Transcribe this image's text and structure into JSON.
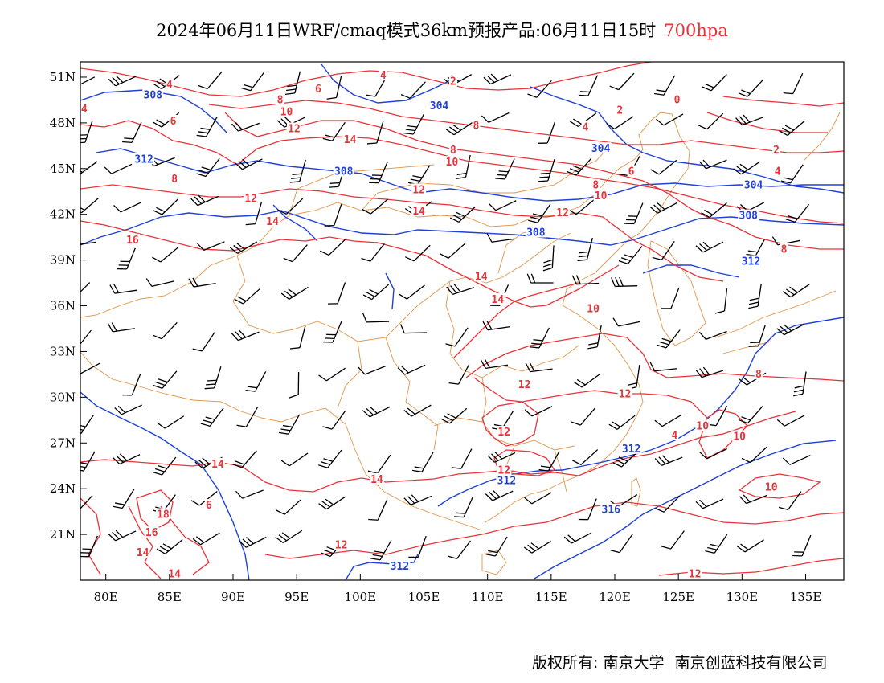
{
  "title": {
    "main": "2024年06月11日WRF/cmaq模式36km预报产品:06月11日15时",
    "level": "700hpa"
  },
  "colors": {
    "temperature_isotherm": "#e8333a",
    "geopotential_height": "#2040d8",
    "boundary": "#e0954a",
    "wind_barb": "#000000"
  },
  "icons": {
    "wind": "wind-barb-icon"
  },
  "axes": {
    "lon_labels": [
      "80E",
      "85E",
      "90E",
      "95E",
      "100E",
      "105E",
      "110E",
      "115E",
      "120E",
      "125E",
      "130E",
      "135E"
    ],
    "lat_labels": [
      "51N",
      "48N",
      "45N",
      "42N",
      "39N",
      "36N",
      "33N",
      "30N",
      "27N",
      "24N",
      "21N"
    ],
    "lon_range": [
      78,
      138
    ],
    "lat_range": [
      18,
      52
    ]
  },
  "contour_labels": {
    "temperature": [
      {
        "text": "4",
        "lon": 85,
        "lat": 50.5
      },
      {
        "text": "4",
        "lon": 78.3,
        "lat": 48.9
      },
      {
        "text": "6",
        "lon": 85.3,
        "lat": 48.1
      },
      {
        "text": "8",
        "lon": 93.7,
        "lat": 49.5
      },
      {
        "text": "10",
        "lon": 94.2,
        "lat": 48.7
      },
      {
        "text": "12",
        "lon": 94.8,
        "lat": 47.6
      },
      {
        "text": "6",
        "lon": 96.7,
        "lat": 50.2
      },
      {
        "text": "4",
        "lon": 101.8,
        "lat": 51.1
      },
      {
        "text": "2",
        "lon": 107.3,
        "lat": 50.7
      },
      {
        "text": "8",
        "lon": 109.1,
        "lat": 47.8
      },
      {
        "text": "4",
        "lon": 117.7,
        "lat": 47.7
      },
      {
        "text": "2",
        "lon": 120.4,
        "lat": 48.8
      },
      {
        "text": "0",
        "lon": 124.9,
        "lat": 49.5
      },
      {
        "text": "8",
        "lon": 85.4,
        "lat": 44.3
      },
      {
        "text": "14",
        "lon": 99.2,
        "lat": 46.9
      },
      {
        "text": "8",
        "lon": 107.3,
        "lat": 46.2
      },
      {
        "text": "10",
        "lon": 107.2,
        "lat": 45.4
      },
      {
        "text": "12",
        "lon": 104.6,
        "lat": 43.6
      },
      {
        "text": "14",
        "lon": 104.6,
        "lat": 42.2
      },
      {
        "text": "6",
        "lon": 121.3,
        "lat": 44.8
      },
      {
        "text": "8",
        "lon": 118.5,
        "lat": 43.9
      },
      {
        "text": "10",
        "lon": 118.9,
        "lat": 43.2
      },
      {
        "text": "12",
        "lon": 115.9,
        "lat": 42.1
      },
      {
        "text": "2",
        "lon": 132.7,
        "lat": 46.2
      },
      {
        "text": "4",
        "lon": 132.8,
        "lat": 44.8
      },
      {
        "text": "12",
        "lon": 91.4,
        "lat": 43
      },
      {
        "text": "14",
        "lon": 93.1,
        "lat": 41.5
      },
      {
        "text": "16",
        "lon": 82.1,
        "lat": 40.3
      },
      {
        "text": "8",
        "lon": 133.3,
        "lat": 39.7
      },
      {
        "text": "14",
        "lon": 109.5,
        "lat": 37.9
      },
      {
        "text": "14",
        "lon": 110.8,
        "lat": 36.4
      },
      {
        "text": "10",
        "lon": 118.3,
        "lat": 35.8
      },
      {
        "text": "12",
        "lon": 112.9,
        "lat": 30.8
      },
      {
        "text": "12",
        "lon": 120.8,
        "lat": 30.2
      },
      {
        "text": "8",
        "lon": 131.3,
        "lat": 31.5
      },
      {
        "text": "12",
        "lon": 111.3,
        "lat": 27.7
      },
      {
        "text": "10",
        "lon": 126.9,
        "lat": 28.1
      },
      {
        "text": "10",
        "lon": 129.8,
        "lat": 27.4
      },
      {
        "text": "4",
        "lon": 124.7,
        "lat": 27.5
      },
      {
        "text": "14",
        "lon": 88.8,
        "lat": 25.6
      },
      {
        "text": "14",
        "lon": 101.3,
        "lat": 24.6
      },
      {
        "text": "12",
        "lon": 111.3,
        "lat": 25.2
      },
      {
        "text": "10",
        "lon": 132.3,
        "lat": 24.1
      },
      {
        "text": "18",
        "lon": 84.5,
        "lat": 22.3
      },
      {
        "text": "16",
        "lon": 83.6,
        "lat": 21.1
      },
      {
        "text": "6",
        "lon": 88.1,
        "lat": 22.9
      },
      {
        "text": "14",
        "lon": 82.9,
        "lat": 19.8
      },
      {
        "text": "12",
        "lon": 98.5,
        "lat": 20.3
      },
      {
        "text": "14",
        "lon": 85.4,
        "lat": 18.4
      },
      {
        "text": "12",
        "lon": 126.3,
        "lat": 18.4
      }
    ],
    "geopotential": [
      {
        "text": "308",
        "lon": 83.7,
        "lat": 49.8
      },
      {
        "text": "304",
        "lon": 106.2,
        "lat": 49.1
      },
      {
        "text": "304",
        "lon": 118.9,
        "lat": 46.3
      },
      {
        "text": "312",
        "lon": 83,
        "lat": 45.6
      },
      {
        "text": "308",
        "lon": 98.7,
        "lat": 44.8
      },
      {
        "text": "304",
        "lon": 130.9,
        "lat": 43.9
      },
      {
        "text": "308",
        "lon": 130.5,
        "lat": 41.9
      },
      {
        "text": "308",
        "lon": 113.8,
        "lat": 40.8
      },
      {
        "text": "312",
        "lon": 130.7,
        "lat": 38.9
      },
      {
        "text": "312",
        "lon": 121.3,
        "lat": 26.6
      },
      {
        "text": "312",
        "lon": 111.5,
        "lat": 24.5
      },
      {
        "text": "316",
        "lon": 119.7,
        "lat": 22.6
      },
      {
        "text": "312",
        "lon": 103.1,
        "lat": 18.9
      }
    ]
  }
}
